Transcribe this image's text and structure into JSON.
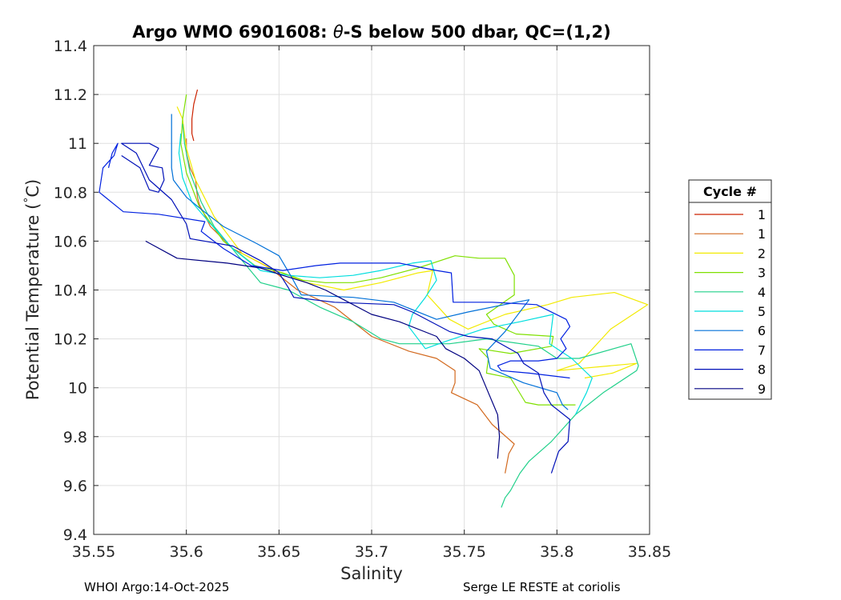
{
  "chart_data": {
    "type": "line",
    "title": "Argo WMO 6901608: θ-S below 500 dbar,  QC=(1,2)",
    "title_parts": {
      "prefix": "Argo WMO 6901608: ",
      "symbol": "θ",
      "suffix": "-S below 500 dbar,  QC=(1,2)"
    },
    "xlabel": "Salinity",
    "ylabel": "Potential Temperature (°C)",
    "ylabel_parts": {
      "text": "Potential Temperature (",
      "degree": "°",
      "unit": "C)"
    },
    "xlim": [
      35.55,
      35.85
    ],
    "ylim": [
      9.4,
      11.4
    ],
    "xticks": [
      35.55,
      35.6,
      35.65,
      35.7,
      35.75,
      35.8,
      35.85
    ],
    "xtick_labels": [
      "35.55",
      "35.6",
      "35.65",
      "35.7",
      "35.75",
      "35.8",
      "35.85"
    ],
    "yticks": [
      9.4,
      9.6,
      9.8,
      10,
      10.2,
      10.4,
      10.6,
      10.8,
      11,
      11.2,
      11.4
    ],
    "ytick_labels": [
      "9.4",
      "9.6",
      "9.8",
      "10",
      "10.2",
      "10.4",
      "10.6",
      "10.8",
      "11",
      "11.2",
      "11.4"
    ],
    "grid": true,
    "legend_title": "Cycle #",
    "legend_position": "outside-right",
    "series": [
      {
        "name": "1",
        "color": "#cc2200",
        "points": [
          [
            35.606,
            11.22
          ],
          [
            35.604,
            11.16
          ],
          [
            35.603,
            11.1
          ],
          [
            35.603,
            11.04
          ],
          [
            35.604,
            11.01
          ]
        ]
      },
      {
        "name": "1",
        "color": "#d2691e",
        "points": [
          [
            35.6,
            11.02
          ],
          [
            35.6,
            10.96
          ],
          [
            35.602,
            10.9
          ],
          [
            35.605,
            10.85
          ],
          [
            35.606,
            10.78
          ],
          [
            35.607,
            10.75
          ],
          [
            35.613,
            10.66
          ],
          [
            35.625,
            10.57
          ],
          [
            35.645,
            10.49
          ],
          [
            35.66,
            10.4
          ],
          [
            35.68,
            10.33
          ],
          [
            35.7,
            10.21
          ],
          [
            35.72,
            10.15
          ],
          [
            35.735,
            10.12
          ],
          [
            35.745,
            10.07
          ],
          [
            35.745,
            10.02
          ],
          [
            35.743,
            9.98
          ],
          [
            35.757,
            9.93
          ],
          [
            35.765,
            9.85
          ],
          [
            35.777,
            9.77
          ],
          [
            35.774,
            9.73
          ],
          [
            35.772,
            9.65
          ]
        ]
      },
      {
        "name": "2",
        "color": "#f2ea00",
        "points": [
          [
            35.595,
            11.15
          ],
          [
            35.598,
            11.1
          ],
          [
            35.6,
            10.98
          ],
          [
            35.605,
            10.85
          ],
          [
            35.615,
            10.7
          ],
          [
            35.63,
            10.55
          ],
          [
            35.648,
            10.48
          ],
          [
            35.665,
            10.43
          ],
          [
            35.685,
            10.4
          ],
          [
            35.705,
            10.43
          ],
          [
            35.725,
            10.47
          ],
          [
            35.733,
            10.48
          ],
          [
            35.73,
            10.38
          ],
          [
            35.742,
            10.28
          ],
          [
            35.752,
            10.24
          ],
          [
            35.772,
            10.3
          ],
          [
            35.795,
            10.34
          ],
          [
            35.808,
            10.37
          ],
          [
            35.831,
            10.39
          ],
          [
            35.849,
            10.34
          ],
          [
            35.829,
            10.24
          ],
          [
            35.812,
            10.1
          ],
          [
            35.8,
            10.07
          ],
          [
            35.843,
            10.1
          ],
          [
            35.83,
            10.06
          ],
          [
            35.815,
            10.04
          ]
        ]
      },
      {
        "name": "3",
        "color": "#7fe000",
        "points": [
          [
            35.6,
            11.2
          ],
          [
            35.598,
            11.1
          ],
          [
            35.597,
            11.0
          ],
          [
            35.6,
            10.88
          ],
          [
            35.607,
            10.74
          ],
          [
            35.62,
            10.6
          ],
          [
            35.637,
            10.5
          ],
          [
            35.652,
            10.47
          ],
          [
            35.663,
            10.44
          ],
          [
            35.675,
            10.43
          ],
          [
            35.69,
            10.43
          ],
          [
            35.705,
            10.45
          ],
          [
            35.725,
            10.49
          ],
          [
            35.745,
            10.54
          ],
          [
            35.758,
            10.53
          ],
          [
            35.772,
            10.53
          ],
          [
            35.777,
            10.46
          ],
          [
            35.777,
            10.38
          ],
          [
            35.762,
            10.3
          ],
          [
            35.766,
            10.26
          ],
          [
            35.778,
            10.22
          ],
          [
            35.798,
            10.21
          ],
          [
            35.797,
            10.17
          ],
          [
            35.775,
            10.14
          ],
          [
            35.758,
            10.16
          ],
          [
            35.763,
            10.12
          ],
          [
            35.762,
            10.06
          ],
          [
            35.775,
            10.04
          ],
          [
            35.783,
            9.94
          ],
          [
            35.79,
            9.93
          ],
          [
            35.81,
            9.93
          ]
        ]
      },
      {
        "name": "4",
        "color": "#20d08a",
        "points": [
          [
            35.598,
            11.08
          ],
          [
            35.599,
            11.0
          ],
          [
            35.602,
            10.88
          ],
          [
            35.608,
            10.76
          ],
          [
            35.615,
            10.66
          ],
          [
            35.628,
            10.54
          ],
          [
            35.64,
            10.43
          ],
          [
            35.655,
            10.4
          ],
          [
            35.672,
            10.33
          ],
          [
            35.69,
            10.27
          ],
          [
            35.705,
            10.2
          ],
          [
            35.715,
            10.18
          ],
          [
            35.742,
            10.18
          ],
          [
            35.762,
            10.2
          ],
          [
            35.79,
            10.17
          ],
          [
            35.8,
            10.12
          ],
          [
            35.812,
            10.12
          ],
          [
            35.84,
            10.18
          ],
          [
            35.844,
            10.09
          ],
          [
            35.843,
            10.07
          ],
          [
            35.825,
            9.98
          ],
          [
            35.81,
            9.89
          ],
          [
            35.797,
            9.78
          ],
          [
            35.785,
            9.7
          ],
          [
            35.78,
            9.65
          ],
          [
            35.775,
            9.58
          ],
          [
            35.772,
            9.55
          ],
          [
            35.77,
            9.51
          ]
        ]
      },
      {
        "name": "5",
        "color": "#00dede",
        "points": [
          [
            35.597,
            11.04
          ],
          [
            35.596,
            10.96
          ],
          [
            35.598,
            10.86
          ],
          [
            35.603,
            10.76
          ],
          [
            35.612,
            10.68
          ],
          [
            35.625,
            10.57
          ],
          [
            35.64,
            10.48
          ],
          [
            35.655,
            10.46
          ],
          [
            35.672,
            10.45
          ],
          [
            35.69,
            10.46
          ],
          [
            35.705,
            10.48
          ],
          [
            35.722,
            10.51
          ],
          [
            35.732,
            10.52
          ],
          [
            35.735,
            10.44
          ],
          [
            35.729,
            10.37
          ],
          [
            35.722,
            10.3
          ],
          [
            35.72,
            10.25
          ],
          [
            35.729,
            10.16
          ],
          [
            35.74,
            10.19
          ],
          [
            35.76,
            10.24
          ],
          [
            35.78,
            10.27
          ],
          [
            35.798,
            10.3
          ],
          [
            35.796,
            10.18
          ],
          [
            35.808,
            10.12
          ],
          [
            35.819,
            10.04
          ],
          [
            35.816,
            9.98
          ],
          [
            35.81,
            9.89
          ]
        ]
      },
      {
        "name": "6",
        "color": "#0070d8",
        "points": [
          [
            35.592,
            11.12
          ],
          [
            35.592,
            11.05
          ],
          [
            35.592,
            10.96
          ],
          [
            35.592,
            10.9
          ],
          [
            35.593,
            10.85
          ],
          [
            35.595,
            10.83
          ],
          [
            35.6,
            10.78
          ],
          [
            35.608,
            10.73
          ],
          [
            35.62,
            10.66
          ],
          [
            35.638,
            10.59
          ],
          [
            35.65,
            10.54
          ],
          [
            35.657,
            10.45
          ],
          [
            35.662,
            10.38
          ],
          [
            35.69,
            10.37
          ],
          [
            35.712,
            10.35
          ],
          [
            35.735,
            10.28
          ],
          [
            35.752,
            10.31
          ],
          [
            35.778,
            10.35
          ],
          [
            35.785,
            10.36
          ],
          [
            35.777,
            10.28
          ],
          [
            35.772,
            10.23
          ],
          [
            35.762,
            10.15
          ],
          [
            35.764,
            10.08
          ],
          [
            35.773,
            10.05
          ],
          [
            35.782,
            10.02
          ],
          [
            35.8,
            9.98
          ],
          [
            35.803,
            9.93
          ],
          [
            35.806,
            9.91
          ]
        ]
      },
      {
        "name": "7",
        "color": "#0020e0",
        "points": [
          [
            35.558,
            10.9
          ],
          [
            35.56,
            10.96
          ],
          [
            35.563,
            11.0
          ],
          [
            35.561,
            10.95
          ],
          [
            35.555,
            10.9
          ],
          [
            35.553,
            10.8
          ],
          [
            35.566,
            10.72
          ],
          [
            35.585,
            10.71
          ],
          [
            35.61,
            10.68
          ],
          [
            35.608,
            10.64
          ],
          [
            35.62,
            10.57
          ],
          [
            35.635,
            10.5
          ],
          [
            35.652,
            10.48
          ],
          [
            35.67,
            10.5
          ],
          [
            35.683,
            10.51
          ],
          [
            35.715,
            10.51
          ],
          [
            35.735,
            10.48
          ],
          [
            35.743,
            10.47
          ],
          [
            35.744,
            10.35
          ],
          [
            35.765,
            10.35
          ],
          [
            35.789,
            10.34
          ],
          [
            35.805,
            10.28
          ],
          [
            35.807,
            10.25
          ],
          [
            35.802,
            10.2
          ],
          [
            35.805,
            10.16
          ],
          [
            35.8,
            10.12
          ],
          [
            35.79,
            10.11
          ],
          [
            35.775,
            10.11
          ],
          [
            35.768,
            10.09
          ],
          [
            35.77,
            10.07
          ],
          [
            35.785,
            10.06
          ],
          [
            35.807,
            10.04
          ]
        ]
      },
      {
        "name": "8",
        "color": "#0010b8",
        "points": [
          [
            35.565,
            10.95
          ],
          [
            35.575,
            10.9
          ],
          [
            35.58,
            10.81
          ],
          [
            35.585,
            10.8
          ],
          [
            35.588,
            10.85
          ],
          [
            35.587,
            10.9
          ],
          [
            35.58,
            10.91
          ],
          [
            35.585,
            10.98
          ],
          [
            35.58,
            11.0
          ],
          [
            35.565,
            11.0
          ],
          [
            35.573,
            10.96
          ],
          [
            35.58,
            10.85
          ],
          [
            35.592,
            10.77
          ],
          [
            35.6,
            10.67
          ],
          [
            35.602,
            10.61
          ],
          [
            35.625,
            10.58
          ],
          [
            35.64,
            10.52
          ],
          [
            35.65,
            10.47
          ],
          [
            35.655,
            10.41
          ],
          [
            35.658,
            10.37
          ],
          [
            35.68,
            10.35
          ],
          [
            35.712,
            10.34
          ],
          [
            35.722,
            10.31
          ],
          [
            35.742,
            10.23
          ],
          [
            35.752,
            10.21
          ],
          [
            35.765,
            10.2
          ],
          [
            35.779,
            10.14
          ],
          [
            35.782,
            10.1
          ],
          [
            35.79,
            10.06
          ],
          [
            35.793,
            9.98
          ],
          [
            35.797,
            9.93
          ],
          [
            35.807,
            9.87
          ],
          [
            35.806,
            9.78
          ],
          [
            35.801,
            9.74
          ],
          [
            35.797,
            9.65
          ]
        ]
      },
      {
        "name": "9",
        "color": "#000080",
        "points": [
          [
            35.578,
            10.6
          ],
          [
            35.595,
            10.53
          ],
          [
            35.622,
            10.51
          ],
          [
            35.64,
            10.49
          ],
          [
            35.652,
            10.46
          ],
          [
            35.665,
            10.43
          ],
          [
            35.675,
            10.4
          ],
          [
            35.685,
            10.36
          ],
          [
            35.7,
            10.3
          ],
          [
            35.715,
            10.27
          ],
          [
            35.735,
            10.21
          ],
          [
            35.74,
            10.16
          ],
          [
            35.75,
            10.12
          ],
          [
            35.758,
            10.07
          ],
          [
            35.763,
            9.98
          ],
          [
            35.768,
            9.89
          ],
          [
            35.769,
            9.8
          ],
          [
            35.768,
            9.71
          ]
        ]
      }
    ]
  },
  "footer": {
    "left": "WHOI Argo:14-Oct-2025",
    "right": "Serge LE RESTE at coriolis"
  }
}
